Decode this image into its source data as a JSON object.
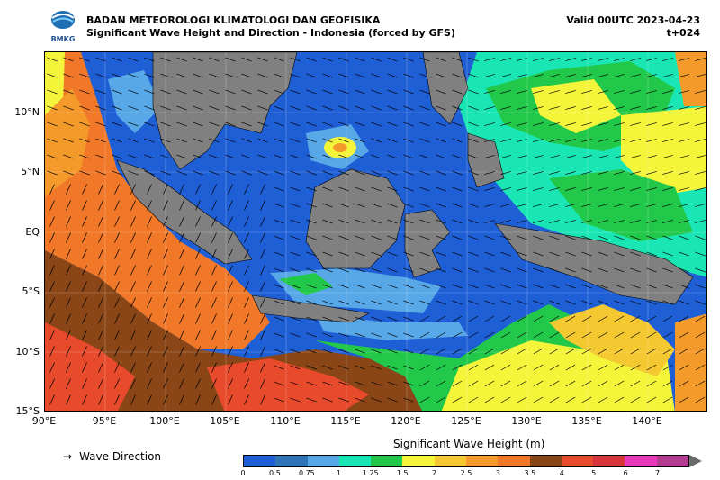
{
  "header": {
    "org": "BADAN METEOROLOGI KLIMATOLOGI DAN GEOFISIKA",
    "subtitle": "Significant Wave Height and Direction - Indonesia (forced by GFS)",
    "valid": "Valid 00UTC 2023-04-23",
    "step": "t+024",
    "logo_text": "BMKG"
  },
  "map": {
    "y_labels": [
      "10°N",
      "5°N",
      "EQ",
      "5°S",
      "10°S",
      "15°S"
    ],
    "x_labels": [
      "90°E",
      "95°E",
      "100°E",
      "105°E",
      "110°E",
      "115°E",
      "120°E",
      "125°E",
      "130°E",
      "135°E",
      "140°E"
    ],
    "lat_range": [
      -15,
      15
    ],
    "lon_range": [
      90,
      145
    ]
  },
  "legend": {
    "arrow_label": "Wave Direction",
    "colorbar_title": "Significant Wave Height (m)",
    "levels": [
      "0",
      "0.5",
      "0.75",
      "1",
      "1.25",
      "1.5",
      "2",
      "2.5",
      "3",
      "3.5",
      "4",
      "5",
      "6",
      "7"
    ],
    "colors": [
      "#1f5fd6",
      "#2f74b5",
      "#58a8e8",
      "#19e6b4",
      "#22c84a",
      "#f4f43a",
      "#f4c830",
      "#f49a2a",
      "#f07828",
      "#8a4616",
      "#e84a2c",
      "#d6363c",
      "#e83ab8",
      "#b43c90"
    ]
  }
}
